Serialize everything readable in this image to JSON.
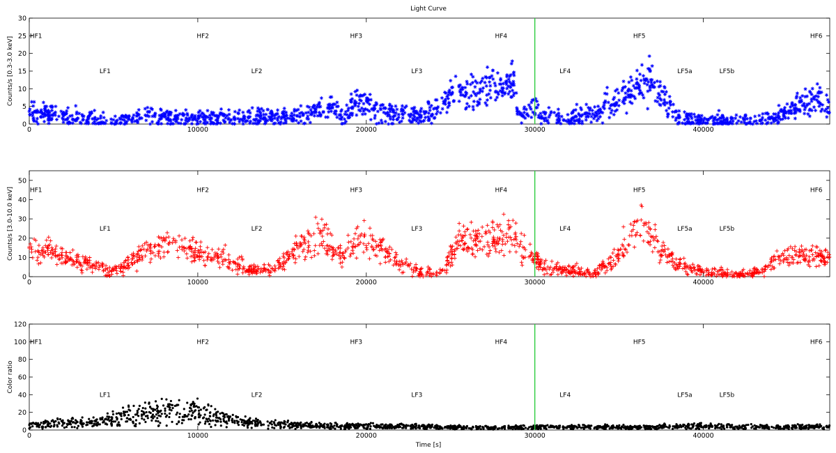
{
  "chart_data": {
    "title": "Light Curve",
    "xlabel": "Time [s]",
    "xlim": [
      0,
      47500
    ],
    "x_ticks": [
      0,
      10000,
      20000,
      30000,
      40000
    ],
    "vertical_line": {
      "x": 30000,
      "color": "#2ecc40"
    },
    "segment_labels": {
      "high": [
        {
          "text": "HF1",
          "x": 400
        },
        {
          "text": "HF2",
          "x": 10300
        },
        {
          "text": "HF3",
          "x": 19400
        },
        {
          "text": "HF4",
          "x": 28000
        },
        {
          "text": "HF5",
          "x": 36200
        },
        {
          "text": "HF6",
          "x": 46700
        }
      ],
      "low": [
        {
          "text": "LF1",
          "x": 4500
        },
        {
          "text": "LF2",
          "x": 13500
        },
        {
          "text": "LF3",
          "x": 23000
        },
        {
          "text": "LF4",
          "x": 31800
        },
        {
          "text": "LF5a",
          "x": 38900
        },
        {
          "text": "LF5b",
          "x": 41400
        }
      ]
    },
    "panels": [
      {
        "type": "scatter",
        "marker": "asterisk",
        "color": "#0000ff",
        "ylabel": "Counts/s [0.3-3.0 keV]",
        "ylim": [
          0,
          30
        ],
        "y_ticks": [
          0,
          5,
          10,
          15,
          20,
          25,
          30
        ],
        "high_label_y": 25,
        "low_label_y": 15,
        "trend": {
          "x": [
            0,
            1000,
            2500,
            4000,
            6000,
            7200,
            8500,
            10000,
            12000,
            13500,
            15500,
            17000,
            18000,
            18700,
            19300,
            20000,
            21000,
            22500,
            23800,
            25000,
            26500,
            28000,
            28800,
            29000,
            29800,
            30500,
            32000,
            33500,
            35000,
            36000,
            36800,
            37500,
            38500,
            40000,
            42000,
            43500,
            44500,
            45500,
            46500,
            47500
          ],
          "y": [
            4.5,
            2.5,
            1.8,
            1.0,
            1.2,
            2.8,
            1.3,
            2.0,
            1.2,
            1.8,
            2.2,
            3.5,
            5.0,
            2.0,
            7.0,
            6.0,
            3.5,
            2.5,
            2.5,
            8.0,
            9.5,
            11.0,
            12.0,
            1.5,
            6.0,
            2.0,
            1.5,
            3.0,
            7.0,
            10.0,
            14.5,
            8.0,
            1.5,
            1.0,
            0.8,
            1.0,
            2.0,
            5.5,
            6.5,
            5.0
          ]
        }
      },
      {
        "type": "scatter",
        "marker": "plus",
        "color": "#ff0000",
        "ylabel": "Counts/s [3.0-10.0 keV]",
        "ylim": [
          0,
          55
        ],
        "y_ticks": [
          0,
          10,
          20,
          30,
          40,
          50
        ],
        "high_label_y": 45,
        "low_label_y": 25,
        "trend": {
          "x": [
            0,
            1500,
            3000,
            4500,
            5500,
            7000,
            8500,
            10000,
            11500,
            13000,
            14500,
            16000,
            17500,
            18500,
            19300,
            20500,
            22000,
            23500,
            24500,
            25500,
            27000,
            28500,
            29800,
            30500,
            32000,
            33500,
            35000,
            36500,
            37500,
            39000,
            40500,
            42000,
            43500,
            44500,
            45500,
            46500,
            47500
          ],
          "y": [
            15,
            12,
            8,
            3.5,
            4,
            14,
            17,
            13,
            10,
            3.5,
            3.5,
            15,
            20,
            10,
            18,
            18,
            7,
            1.5,
            2.5,
            19,
            19,
            23,
            12,
            5,
            3.5,
            1.5,
            12,
            29,
            12,
            4,
            2.5,
            1.0,
            2.5,
            10,
            12,
            11,
            10
          ]
        }
      },
      {
        "type": "scatter",
        "marker": "dot",
        "color": "#000000",
        "ylabel": "Color ratio",
        "ylim": [
          0,
          120
        ],
        "y_ticks": [
          0,
          20,
          40,
          60,
          80,
          100,
          120
        ],
        "high_label_y": 100,
        "low_label_y": 40,
        "trend": {
          "x": [
            0,
            2000,
            4000,
            6000,
            8000,
            10000,
            12000,
            14000,
            16000,
            18000,
            20000,
            22000,
            24000,
            26000,
            28000,
            30000,
            32000,
            34000,
            36000,
            38000,
            40000,
            42000,
            44000,
            46000,
            47500
          ],
          "y": [
            5,
            7,
            8,
            14,
            18,
            17,
            10,
            6,
            5,
            4,
            4,
            3.5,
            3,
            2.5,
            2.5,
            3,
            3,
            3,
            2.5,
            3.5,
            4,
            3,
            3,
            3.5,
            3
          ]
        }
      }
    ]
  }
}
